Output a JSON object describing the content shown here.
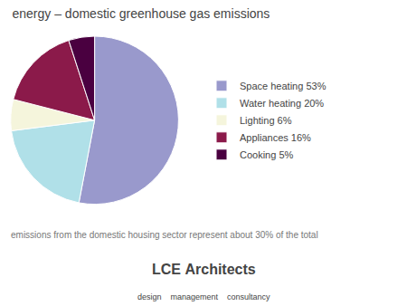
{
  "chart_data": {
    "type": "pie",
    "title": "energy – domestic greenhouse gas emissions",
    "subtitle": "emissions from the domestic housing sector represent about 30% of the total",
    "categories": [
      "Space heating 53%",
      "Water heating 20%",
      "Lighting 6%",
      "Appliances 16%",
      "Cooking 5%"
    ],
    "values": [
      53,
      20,
      6,
      16,
      5
    ],
    "colors": [
      "#9999cc",
      "#b0e0e8",
      "#f5f5dc",
      "#8b1a4a",
      "#4a0040"
    ],
    "legend": "right",
    "annotations": [
      "LCE Architects",
      "design    management    consultancy"
    ]
  }
}
